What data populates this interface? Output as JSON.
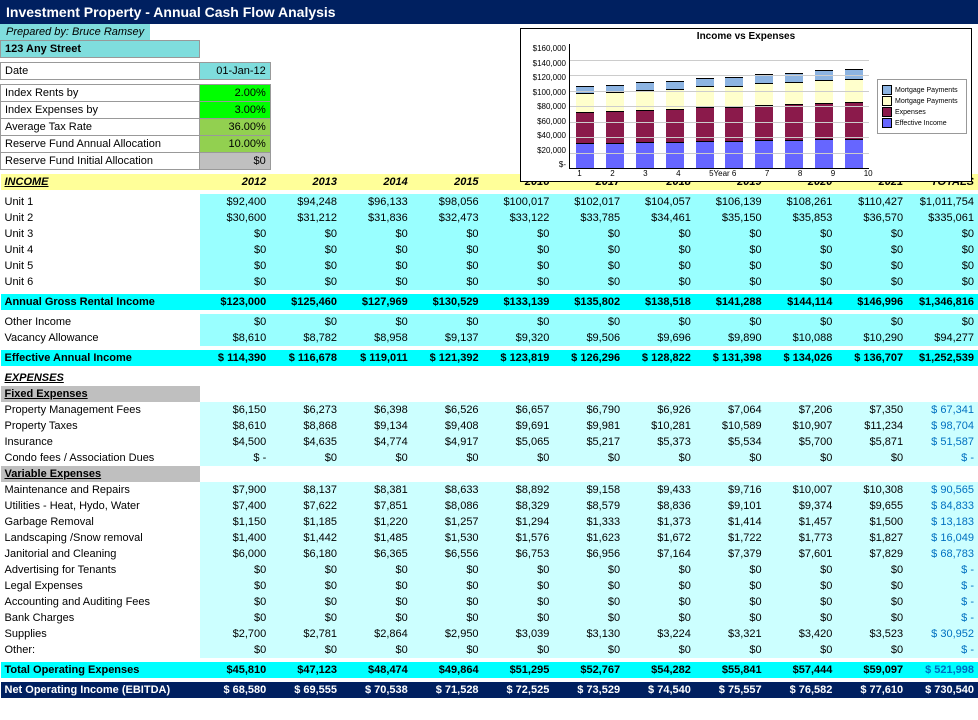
{
  "header": {
    "title": "Investment Property - Annual Cash Flow Analysis",
    "prepared": "Prepared by: Bruce Ramsey"
  },
  "property": {
    "address": "123 Any Street",
    "date_label": "Date",
    "date_value": "01-Jan-12"
  },
  "assumptions": [
    {
      "label": "Index Rents by",
      "value": "2.00%",
      "cls": "pct"
    },
    {
      "label": "Index Expenses by",
      "value": "3.00%",
      "cls": "pct"
    },
    {
      "label": "Average Tax Rate",
      "value": "36.00%",
      "cls": "pct2"
    },
    {
      "label": "Reserve Fund Annual Allocation",
      "value": "10.00%",
      "cls": "pct2"
    },
    {
      "label": "Reserve Fund Initial Allocation",
      "value": "$0",
      "cls": "grey-l"
    }
  ],
  "years": [
    "2012",
    "2013",
    "2014",
    "2015",
    "2016",
    "2017",
    "2018",
    "2019",
    "2020",
    "2021"
  ],
  "totals_label": "TOTALS",
  "income": {
    "section": "INCOME",
    "units": [
      {
        "label": "Unit 1",
        "vals": [
          "$92,400",
          "$94,248",
          "$96,133",
          "$98,056",
          "$100,017",
          "$102,017",
          "$104,057",
          "$106,139",
          "$108,261",
          "$110,427"
        ],
        "tot": "$1,011,754"
      },
      {
        "label": "Unit 2",
        "vals": [
          "$30,600",
          "$31,212",
          "$31,836",
          "$32,473",
          "$33,122",
          "$33,785",
          "$34,461",
          "$35,150",
          "$35,853",
          "$36,570"
        ],
        "tot": "$335,061"
      },
      {
        "label": "Unit 3",
        "vals": [
          "$0",
          "$0",
          "$0",
          "$0",
          "$0",
          "$0",
          "$0",
          "$0",
          "$0",
          "$0"
        ],
        "tot": "$0"
      },
      {
        "label": "Unit 4",
        "vals": [
          "$0",
          "$0",
          "$0",
          "$0",
          "$0",
          "$0",
          "$0",
          "$0",
          "$0",
          "$0"
        ],
        "tot": "$0"
      },
      {
        "label": "Unit 5",
        "vals": [
          "$0",
          "$0",
          "$0",
          "$0",
          "$0",
          "$0",
          "$0",
          "$0",
          "$0",
          "$0"
        ],
        "tot": "$0"
      },
      {
        "label": "Unit 6",
        "vals": [
          "$0",
          "$0",
          "$0",
          "$0",
          "$0",
          "$0",
          "$0",
          "$0",
          "$0",
          "$0"
        ],
        "tot": "$0"
      }
    ],
    "gross": {
      "label": "Annual Gross Rental Income",
      "vals": [
        "$123,000",
        "$125,460",
        "$127,969",
        "$130,529",
        "$133,139",
        "$135,802",
        "$138,518",
        "$141,288",
        "$144,114",
        "$146,996"
      ],
      "tot": "$1,346,816"
    },
    "other": {
      "label": "Other Income",
      "vals": [
        "$0",
        "$0",
        "$0",
        "$0",
        "$0",
        "$0",
        "$0",
        "$0",
        "$0",
        "$0"
      ],
      "tot": "$0"
    },
    "vacancy": {
      "label": "Vacancy Allowance",
      "vals": [
        "$8,610",
        "$8,782",
        "$8,958",
        "$9,137",
        "$9,320",
        "$9,506",
        "$9,696",
        "$9,890",
        "$10,088",
        "$10,290"
      ],
      "tot": "$94,277"
    },
    "effective": {
      "label": "Effective Annual Income",
      "vals": [
        "$  114,390",
        "$  116,678",
        "$  119,011",
        "$  121,392",
        "$ 123,819",
        "$   126,296",
        "$   128,822",
        "$   131,398",
        "$   134,026",
        "$   136,707"
      ],
      "tot": "$1,252,539"
    }
  },
  "expenses": {
    "section": "EXPENSES",
    "fixed_label": "Fixed Expenses",
    "fixed": [
      {
        "label": "Property Management Fees",
        "vals": [
          "$6,150",
          "$6,273",
          "$6,398",
          "$6,526",
          "$6,657",
          "$6,790",
          "$6,926",
          "$7,064",
          "$7,206",
          "$7,350"
        ],
        "tot": "$   67,341"
      },
      {
        "label": "Property Taxes",
        "vals": [
          "$8,610",
          "$8,868",
          "$9,134",
          "$9,408",
          "$9,691",
          "$9,981",
          "$10,281",
          "$10,589",
          "$10,907",
          "$11,234"
        ],
        "tot": "$   98,704"
      },
      {
        "label": "Insurance",
        "vals": [
          "$4,500",
          "$4,635",
          "$4,774",
          "$4,917",
          "$5,065",
          "$5,217",
          "$5,373",
          "$5,534",
          "$5,700",
          "$5,871"
        ],
        "tot": "$   51,587"
      },
      {
        "label": "Condo fees / Association Dues",
        "vals": [
          "$       -",
          "$0",
          "$0",
          "$0",
          "$0",
          "$0",
          "$0",
          "$0",
          "$0",
          "$0"
        ],
        "tot": "$        -"
      }
    ],
    "var_label": "Variable Expenses",
    "variable": [
      {
        "label": "Maintenance and Repairs",
        "vals": [
          "$7,900",
          "$8,137",
          "$8,381",
          "$8,633",
          "$8,892",
          "$9,158",
          "$9,433",
          "$9,716",
          "$10,007",
          "$10,308"
        ],
        "tot": "$   90,565"
      },
      {
        "label": "Utilities - Heat, Hydo, Water",
        "vals": [
          "$7,400",
          "$7,622",
          "$7,851",
          "$8,086",
          "$8,329",
          "$8,579",
          "$8,836",
          "$9,101",
          "$9,374",
          "$9,655"
        ],
        "tot": "$   84,833"
      },
      {
        "label": "Garbage Removal",
        "vals": [
          "$1,150",
          "$1,185",
          "$1,220",
          "$1,257",
          "$1,294",
          "$1,333",
          "$1,373",
          "$1,414",
          "$1,457",
          "$1,500"
        ],
        "tot": "$   13,183"
      },
      {
        "label": "Landscaping /Snow removal",
        "vals": [
          "$1,400",
          "$1,442",
          "$1,485",
          "$1,530",
          "$1,576",
          "$1,623",
          "$1,672",
          "$1,722",
          "$1,773",
          "$1,827"
        ],
        "tot": "$   16,049"
      },
      {
        "label": "Janitorial and Cleaning",
        "vals": [
          "$6,000",
          "$6,180",
          "$6,365",
          "$6,556",
          "$6,753",
          "$6,956",
          "$7,164",
          "$7,379",
          "$7,601",
          "$7,829"
        ],
        "tot": "$   68,783"
      },
      {
        "label": "Advertising for Tenants",
        "vals": [
          "$0",
          "$0",
          "$0",
          "$0",
          "$0",
          "$0",
          "$0",
          "$0",
          "$0",
          "$0"
        ],
        "tot": "$        -"
      },
      {
        "label": "Legal Expenses",
        "vals": [
          "$0",
          "$0",
          "$0",
          "$0",
          "$0",
          "$0",
          "$0",
          "$0",
          "$0",
          "$0"
        ],
        "tot": "$        -"
      },
      {
        "label": "Accounting and Auditing Fees",
        "vals": [
          "$0",
          "$0",
          "$0",
          "$0",
          "$0",
          "$0",
          "$0",
          "$0",
          "$0",
          "$0"
        ],
        "tot": "$        -"
      },
      {
        "label": "Bank Charges",
        "vals": [
          "$0",
          "$0",
          "$0",
          "$0",
          "$0",
          "$0",
          "$0",
          "$0",
          "$0",
          "$0"
        ],
        "tot": "$        -"
      },
      {
        "label": "Supplies",
        "vals": [
          "$2,700",
          "$2,781",
          "$2,864",
          "$2,950",
          "$3,039",
          "$3,130",
          "$3,224",
          "$3,321",
          "$3,420",
          "$3,523"
        ],
        "tot": "$   30,952"
      },
      {
        "label": "Other:",
        "vals": [
          "$0",
          "$0",
          "$0",
          "$0",
          "$0",
          "$0",
          "$0",
          "$0",
          "$0",
          "$0"
        ],
        "tot": "$        -"
      }
    ],
    "total": {
      "label": "Total Operating Expenses",
      "vals": [
        "$45,810",
        "$47,123",
        "$48,474",
        "$49,864",
        "$51,295",
        "$52,767",
        "$54,282",
        "$55,841",
        "$57,444",
        "$59,097"
      ],
      "tot": "$   521,998"
    }
  },
  "noi": {
    "label": "Net Operating Income (EBITDA)",
    "vals": [
      "$   68,580",
      "$   69,555",
      "$   70,538",
      "$   71,528",
      "$   72,525",
      "$   73,529",
      "$   74,540",
      "$   75,557",
      "$   76,582",
      "$   77,610"
    ],
    "tot": "$   730,540"
  },
  "chart": {
    "title": "Income vs Expenses",
    "ymax": 160000,
    "yticks": [
      "$160,000",
      "$140,000",
      "$120,000",
      "$100,000",
      "$80,000",
      "$60,000",
      "$40,000",
      "$20,000",
      "$-"
    ],
    "xlabels": [
      "1",
      "2",
      "3",
      "4",
      "5Year 6",
      "7",
      "8",
      "9",
      "10"
    ],
    "legend": [
      {
        "label": "Mortgage Payments",
        "color": "#8db4e2"
      },
      {
        "label": "Mortgage Payments",
        "color": "#ffffcc"
      },
      {
        "label": "Expenses",
        "color": "#8b1a4b"
      },
      {
        "label": "Effective Income",
        "color": "#6666ff"
      }
    ],
    "colors": {
      "bottom": "#6666ff",
      "mid": "#8b1a4b",
      "upper": "#ffffcc",
      "top": "#8db4e2"
    },
    "bars": [
      {
        "b": 24,
        "m": 30,
        "u": 18,
        "t": 6
      },
      {
        "b": 24,
        "m": 31,
        "u": 18,
        "t": 6
      },
      {
        "b": 25,
        "m": 31,
        "u": 19,
        "t": 7
      },
      {
        "b": 25,
        "m": 32,
        "u": 19,
        "t": 7
      },
      {
        "b": 26,
        "m": 33,
        "u": 20,
        "t": 7
      },
      {
        "b": 26,
        "m": 33,
        "u": 20,
        "t": 8
      },
      {
        "b": 27,
        "m": 34,
        "u": 21,
        "t": 8
      },
      {
        "b": 27,
        "m": 35,
        "u": 21,
        "t": 8
      },
      {
        "b": 28,
        "m": 35,
        "u": 22,
        "t": 9
      },
      {
        "b": 28,
        "m": 36,
        "u": 22,
        "t": 9
      }
    ]
  }
}
